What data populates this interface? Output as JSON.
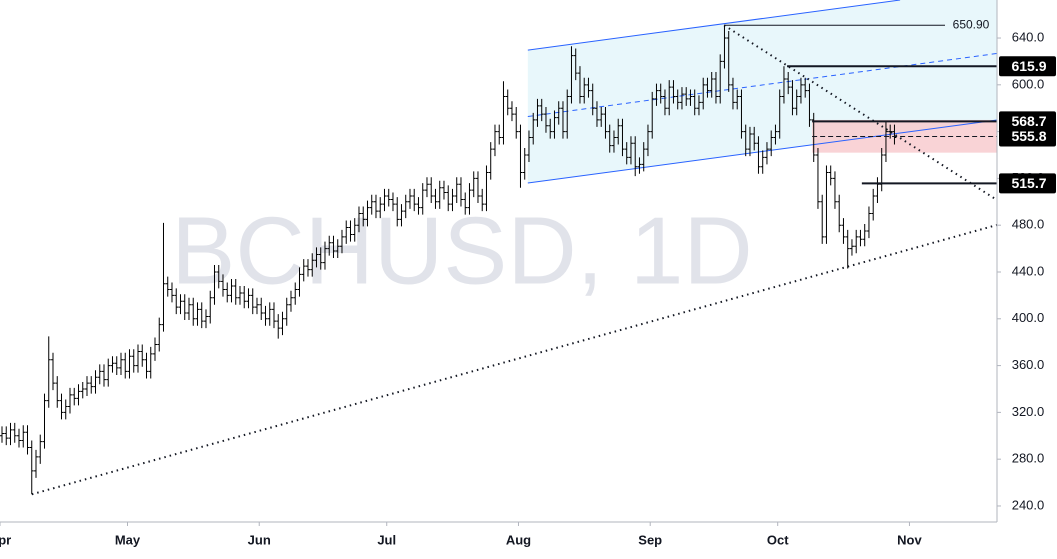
{
  "chart_data": {
    "type": "ohlc",
    "title": "BCHUSD, 1D",
    "color": "#000000",
    "xlim": [
      0,
      234.6
    ],
    "ylim": [
      226.3,
      672.5
    ],
    "xticks": [
      {
        "value": 0,
        "label": "Apr"
      },
      {
        "value": 30,
        "label": "May"
      },
      {
        "value": 61,
        "label": "Jun"
      },
      {
        "value": 91,
        "label": "Jul"
      },
      {
        "value": 122,
        "label": "Aug"
      },
      {
        "value": 153,
        "label": "Sep"
      },
      {
        "value": 183,
        "label": "Oct"
      },
      {
        "value": 214,
        "label": "Nov"
      }
    ],
    "yticks": [
      {
        "value": 240,
        "label": "240.0"
      },
      {
        "value": 280,
        "label": "280.0"
      },
      {
        "value": 320,
        "label": "320.0"
      },
      {
        "value": 360,
        "label": "360.0"
      },
      {
        "value": 400,
        "label": "400.0"
      },
      {
        "value": 440,
        "label": "440.0"
      },
      {
        "value": 480,
        "label": "480.0"
      },
      {
        "value": 520,
        "label": "520.0"
      },
      {
        "value": 560,
        "label": "560.0"
      },
      {
        "value": 600,
        "label": "600.0"
      },
      {
        "value": 640,
        "label": "640.0"
      }
    ],
    "open": [
      300,
      302,
      298,
      305,
      300,
      296,
      303,
      290,
      270,
      282,
      295,
      330,
      365,
      345,
      330,
      320,
      325,
      335,
      332,
      338,
      340,
      345,
      342,
      350,
      355,
      348,
      360,
      362,
      358,
      365,
      355,
      368,
      360,
      372,
      365,
      355,
      370,
      378,
      395,
      430,
      425,
      420,
      410,
      415,
      405,
      412,
      400,
      408,
      398,
      402,
      418,
      440,
      432,
      425,
      420,
      428,
      418,
      422,
      415,
      420,
      410,
      412,
      405,
      400,
      408,
      398,
      392,
      400,
      412,
      418,
      425,
      438,
      445,
      442,
      450,
      455,
      448,
      460,
      465,
      458,
      462,
      470,
      478,
      472,
      480,
      490,
      485,
      495,
      500,
      492,
      498,
      505,
      502,
      498,
      485,
      492,
      500,
      505,
      498,
      495,
      510,
      515,
      505,
      500,
      512,
      508,
      498,
      505,
      515,
      502,
      495,
      510,
      520,
      505,
      498,
      525,
      545,
      560,
      555,
      590,
      580,
      575,
      560,
      525,
      540,
      555,
      570,
      582,
      575,
      565,
      560,
      572,
      580,
      560,
      590,
      625,
      610,
      590,
      600,
      595,
      580,
      570,
      575,
      560,
      548,
      555,
      565,
      545,
      538,
      550,
      530,
      532,
      545,
      560,
      588,
      595,
      590,
      580,
      598,
      590,
      585,
      592,
      588,
      590,
      580,
      585,
      600,
      595,
      605,
      590,
      620,
      640,
      600,
      585,
      590,
      560,
      545,
      558,
      550,
      530,
      538,
      545,
      555,
      560,
      590,
      605,
      598,
      580,
      590,
      600,
      595,
      570,
      540,
      500,
      470,
      525,
      520,
      500,
      480,
      470,
      460,
      462,
      470,
      468,
      475,
      490,
      505,
      515,
      540,
      560,
      560
    ],
    "high": [
      308,
      308,
      311,
      311,
      306,
      309,
      309,
      296,
      288,
      301,
      336,
      385,
      371,
      351,
      336,
      331,
      341,
      341,
      344,
      346,
      351,
      351,
      356,
      361,
      361,
      366,
      368,
      368,
      371,
      371,
      374,
      374,
      378,
      378,
      371,
      376,
      384,
      401,
      482,
      436,
      431,
      426,
      421,
      421,
      418,
      418,
      414,
      414,
      408,
      424,
      446,
      446,
      438,
      431,
      434,
      434,
      428,
      428,
      426,
      426,
      418,
      418,
      411,
      414,
      414,
      404,
      406,
      418,
      424,
      431,
      444,
      451,
      451,
      456,
      461,
      461,
      466,
      471,
      471,
      468,
      476,
      484,
      484,
      486,
      496,
      496,
      501,
      506,
      506,
      504,
      511,
      511,
      508,
      504,
      498,
      506,
      511,
      511,
      504,
      516,
      521,
      521,
      511,
      518,
      518,
      514,
      511,
      521,
      521,
      508,
      516,
      526,
      526,
      511,
      531,
      551,
      566,
      566,
      603,
      596,
      586,
      581,
      566,
      546,
      561,
      576,
      588,
      588,
      581,
      571,
      578,
      586,
      586,
      596,
      633,
      631,
      616,
      606,
      606,
      601,
      586,
      581,
      581,
      566,
      561,
      571,
      571,
      551,
      556,
      556,
      538,
      551,
      566,
      594,
      601,
      601,
      596,
      604,
      604,
      596,
      598,
      598,
      596,
      596,
      591,
      606,
      606,
      611,
      611,
      626,
      650.9,
      646,
      606,
      596,
      596,
      566,
      564,
      564,
      556,
      544,
      551,
      561,
      566,
      596,
      615.9,
      611,
      604,
      596,
      606,
      606,
      601,
      576,
      546,
      506,
      531,
      531,
      526,
      506,
      486,
      476,
      468,
      476,
      476,
      481,
      496,
      511,
      521,
      546,
      568.7,
      566,
      566
    ],
    "low": [
      294,
      292,
      292,
      294,
      290,
      290,
      284,
      250,
      264,
      276,
      289,
      324,
      339,
      324,
      314,
      314,
      319,
      326,
      326,
      332,
      334,
      336,
      336,
      344,
      342,
      342,
      354,
      352,
      352,
      349,
      349,
      354,
      354,
      359,
      349,
      349,
      364,
      372,
      389,
      419,
      414,
      404,
      404,
      399,
      399,
      394,
      394,
      392,
      392,
      396,
      412,
      426,
      419,
      414,
      414,
      412,
      412,
      409,
      409,
      404,
      404,
      399,
      394,
      394,
      392,
      383,
      386,
      394,
      406,
      412,
      419,
      432,
      436,
      436,
      444,
      442,
      442,
      454,
      452,
      452,
      456,
      464,
      466,
      466,
      474,
      479,
      479,
      489,
      486,
      486,
      492,
      496,
      492,
      479,
      479,
      486,
      494,
      492,
      489,
      489,
      504,
      499,
      494,
      494,
      502,
      492,
      492,
      499,
      496,
      489,
      489,
      504,
      499,
      492,
      492,
      519,
      539,
      549,
      549,
      574,
      569,
      554,
      512,
      519,
      534,
      549,
      564,
      569,
      559,
      554,
      554,
      566,
      554,
      554,
      584,
      604,
      584,
      584,
      589,
      574,
      564,
      564,
      554,
      542,
      542,
      549,
      539,
      532,
      532,
      522,
      524,
      526,
      539,
      554,
      582,
      584,
      574,
      574,
      584,
      579,
      579,
      582,
      582,
      574,
      574,
      579,
      589,
      589,
      584,
      584,
      614,
      594,
      579,
      579,
      554,
      539,
      539,
      544,
      524,
      524,
      532,
      539,
      549,
      554,
      584,
      592,
      574,
      574,
      584,
      589,
      564,
      534,
      494,
      464,
      464,
      514,
      494,
      474,
      464,
      443,
      454,
      456,
      462,
      462,
      469,
      484,
      499,
      509,
      534,
      554,
      549
    ],
    "close": [
      302,
      298,
      305,
      300,
      296,
      303,
      290,
      270,
      282,
      295,
      330,
      365,
      345,
      330,
      320,
      325,
      335,
      332,
      338,
      340,
      345,
      342,
      350,
      355,
      348,
      360,
      362,
      358,
      365,
      355,
      368,
      360,
      372,
      365,
      355,
      370,
      378,
      395,
      430,
      425,
      420,
      410,
      415,
      405,
      412,
      400,
      408,
      398,
      402,
      418,
      440,
      432,
      425,
      420,
      428,
      418,
      422,
      415,
      420,
      410,
      412,
      405,
      400,
      408,
      398,
      392,
      400,
      412,
      418,
      425,
      438,
      445,
      442,
      450,
      455,
      448,
      460,
      465,
      458,
      462,
      470,
      478,
      472,
      480,
      490,
      485,
      495,
      500,
      492,
      498,
      505,
      502,
      498,
      485,
      492,
      500,
      505,
      498,
      495,
      510,
      515,
      505,
      500,
      512,
      508,
      498,
      505,
      515,
      502,
      495,
      510,
      520,
      505,
      498,
      525,
      545,
      560,
      555,
      590,
      580,
      575,
      560,
      525,
      540,
      555,
      570,
      582,
      575,
      565,
      560,
      572,
      580,
      560,
      590,
      625,
      610,
      590,
      600,
      595,
      580,
      570,
      575,
      560,
      548,
      555,
      565,
      545,
      538,
      550,
      530,
      532,
      545,
      560,
      588,
      595,
      590,
      580,
      598,
      590,
      585,
      592,
      588,
      590,
      580,
      585,
      600,
      595,
      605,
      590,
      620,
      640,
      600,
      585,
      590,
      560,
      545,
      558,
      550,
      530,
      538,
      545,
      555,
      560,
      590,
      605,
      598,
      580,
      590,
      600,
      595,
      570,
      540,
      500,
      470,
      525,
      520,
      500,
      480,
      470,
      460,
      462,
      470,
      468,
      475,
      490,
      505,
      515,
      540,
      560,
      560,
      555
    ],
    "channel": {
      "color": "#2962ff",
      "fill": "#e8f7fb",
      "upper": [
        [
          124.2,
          629.7
        ],
        [
          211.8,
          672.5
        ]
      ],
      "lower": [
        [
          124.2,
          516.1
        ],
        [
          234.6,
          569.9
        ]
      ],
      "middle": [
        [
          124.2,
          572.9
        ],
        [
          234.6,
          626.8
        ]
      ]
    },
    "dotted_lines": [
      {
        "points": [
          [
            7.5,
            250
          ],
          [
            234.6,
            480.2
          ]
        ]
      },
      {
        "points": [
          [
            170.4,
            650.9
          ],
          [
            234.6,
            501.5
          ]
        ]
      }
    ],
    "zone": {
      "low": 542,
      "high": 570,
      "start": 191.1,
      "color": "#f8c8cc"
    },
    "levels": [
      {
        "value": 650.9,
        "label": "650.90",
        "start": 170.4,
        "style": "thin"
      },
      {
        "value": 615.9,
        "label": "615.9",
        "start": 185.2,
        "style": "box"
      },
      {
        "value": 568.7,
        "label": "568.7",
        "start": 191.1,
        "style": "box"
      },
      {
        "value": 555.8,
        "label": "555.8",
        "start": 191.1,
        "style": "box-dashed"
      },
      {
        "value": 515.7,
        "label": "515.7",
        "start": 202.8,
        "style": "box"
      }
    ]
  }
}
